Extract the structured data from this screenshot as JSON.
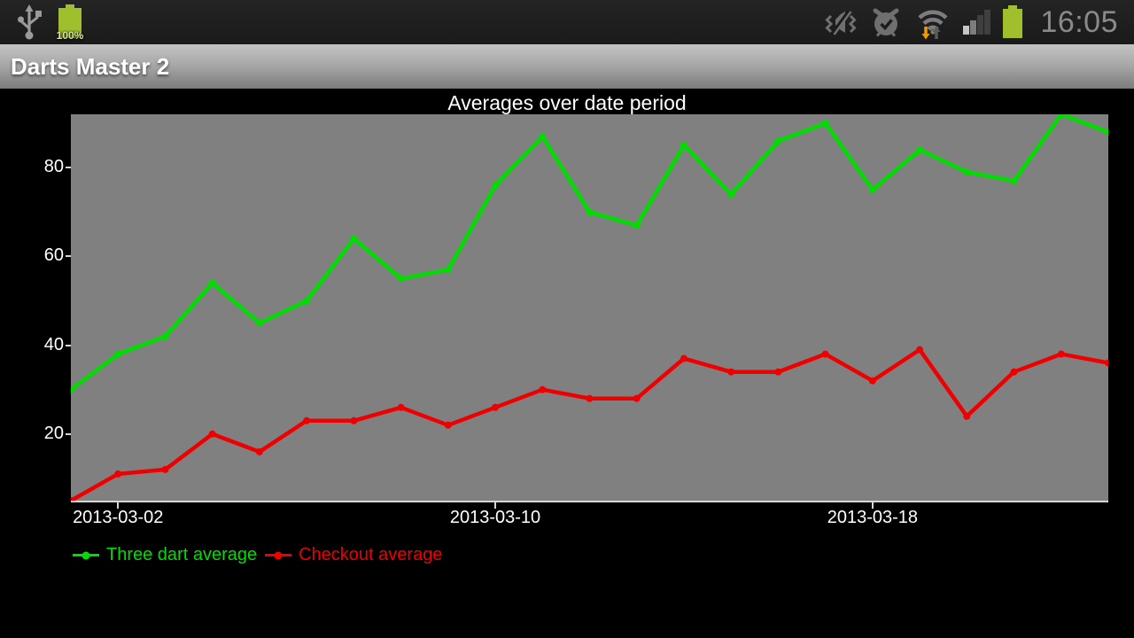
{
  "status_bar": {
    "battery_label": "100%",
    "time": "16:05"
  },
  "app_bar": {
    "title": "Darts Master 2"
  },
  "colors": {
    "background": "#000000",
    "status_bar_bg": "#1c1c1c",
    "plot_bg": "#808080",
    "axis_text": "#ffffff",
    "axis_line": "#d6d6d6",
    "time_text": "#8a8a8a",
    "status_icon_gray": "#6f6f6f",
    "battery_green": "#9fc02c",
    "traffic_arrow_orange": "#f09a07",
    "series_green": "#00dd00",
    "series_red": "#ee0000"
  },
  "chart_data": {
    "type": "line",
    "title": "Averages over date period",
    "xlabel": "",
    "ylabel": "",
    "x_count": 23,
    "x_tick_labels": [
      {
        "index": 1,
        "label": "2013-03-02"
      },
      {
        "index": 9,
        "label": "2013-03-10"
      },
      {
        "index": 17,
        "label": "2013-03-18"
      }
    ],
    "y_ticks": [
      20,
      40,
      60,
      80
    ],
    "ylim": [
      5,
      92
    ],
    "grid": false,
    "legend_position": "bottom-left",
    "plot_background": "#808080",
    "series": [
      {
        "name": "Three dart average",
        "color": "#00dd00",
        "values": [
          30,
          38,
          42,
          54,
          45,
          50,
          64,
          55,
          57,
          76,
          87,
          70,
          67,
          85,
          74,
          86,
          90,
          75,
          84,
          79,
          77,
          92,
          88
        ]
      },
      {
        "name": "Checkout average",
        "color": "#ee0000",
        "values": [
          5,
          11,
          12,
          20,
          16,
          23,
          23,
          26,
          22,
          26,
          30,
          28,
          28,
          37,
          34,
          34,
          38,
          32,
          39,
          24,
          34,
          38,
          36
        ]
      }
    ]
  }
}
